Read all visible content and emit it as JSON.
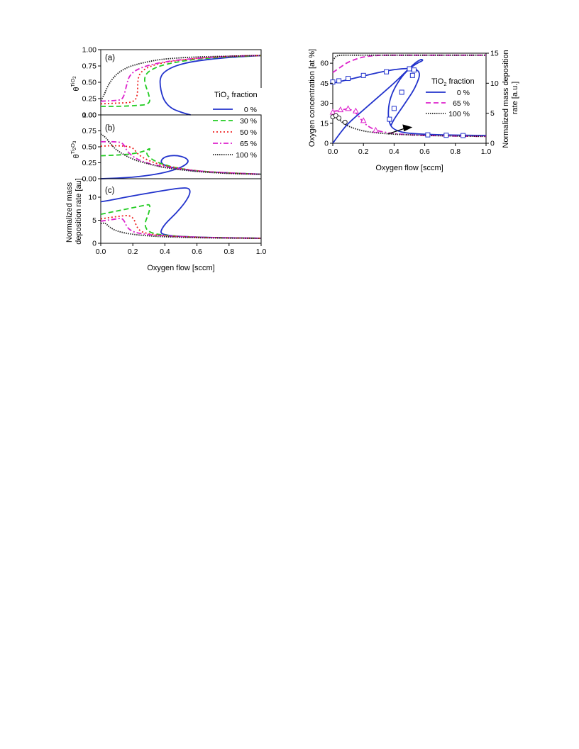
{
  "chart_data": [
    {
      "panel": "a",
      "type": "line",
      "title": "(a)",
      "ylabel": "θ^TiO2",
      "ylabel_main": "θ",
      "ylabel_sup": "TiO",
      "ylabel_sup_sub": "2",
      "xlim": [
        0,
        1.0
      ],
      "ylim": [
        0,
        1.0
      ],
      "yticks": [
        "0.00",
        "0.25",
        "0.50",
        "0.75",
        "1.00"
      ],
      "grid": false,
      "legend_position": "right",
      "legend_title": "TiO2 fraction",
      "legend_title_main": "TiO",
      "legend_title_sub": "2",
      "legend_title_rest": " fraction",
      "series": [
        {
          "name": "0 %",
          "color": "#2233cc",
          "style": "solid",
          "x": [
            0.56,
            0.5,
            0.44,
            0.4,
            0.38,
            0.37,
            0.37,
            0.39,
            0.45,
            0.55,
            0.7,
            0.85,
            1.0
          ],
          "y": [
            0.0,
            0.04,
            0.1,
            0.2,
            0.32,
            0.45,
            0.56,
            0.65,
            0.74,
            0.81,
            0.86,
            0.89,
            0.91
          ]
        },
        {
          "name": "30 %",
          "color": "#22cc22",
          "style": "dashed",
          "x": [
            0.0,
            0.1,
            0.2,
            0.31,
            0.3,
            0.28,
            0.27,
            0.3,
            0.4,
            0.6,
            0.8,
            1.0
          ],
          "y": [
            0.13,
            0.13,
            0.14,
            0.16,
            0.32,
            0.44,
            0.57,
            0.68,
            0.78,
            0.86,
            0.89,
            0.91
          ]
        },
        {
          "name": "50 %",
          "color": "#ee2222",
          "style": "dotted",
          "x": [
            0.0,
            0.1,
            0.2,
            0.23,
            0.23,
            0.25,
            0.3,
            0.4,
            0.6,
            0.8,
            1.0
          ],
          "y": [
            0.17,
            0.18,
            0.19,
            0.28,
            0.55,
            0.66,
            0.74,
            0.81,
            0.87,
            0.9,
            0.91
          ]
        },
        {
          "name": "65 %",
          "color": "#dd22cc",
          "style": "dashdot",
          "x": [
            0.0,
            0.1,
            0.14,
            0.16,
            0.18,
            0.25,
            0.4,
            0.6,
            0.8,
            1.0
          ],
          "y": [
            0.21,
            0.22,
            0.24,
            0.45,
            0.62,
            0.73,
            0.82,
            0.87,
            0.9,
            0.91
          ]
        },
        {
          "name": "100 %",
          "color": "#222222",
          "style": "densedot",
          "x": [
            0.0,
            0.02,
            0.05,
            0.1,
            0.15,
            0.2,
            0.3,
            0.4,
            0.6,
            0.8,
            1.0
          ],
          "y": [
            0.22,
            0.3,
            0.48,
            0.63,
            0.71,
            0.76,
            0.82,
            0.86,
            0.89,
            0.9,
            0.91
          ]
        }
      ]
    },
    {
      "panel": "b",
      "type": "line",
      "title": "(b)",
      "ylabel": "θ^Ti2O3",
      "ylabel_main": "θ",
      "ylabel_sup": "Ti",
      "ylabel_sup_sub": "2",
      "ylabel_sup2": "O",
      "ylabel_sup2_sub": "3",
      "xlim": [
        0,
        1.0
      ],
      "ylim": [
        0,
        1.0
      ],
      "yticks": [
        "0.00",
        "0.25",
        "0.50",
        "0.75",
        "1.00"
      ],
      "grid": false,
      "series": [
        {
          "name": "0 %",
          "color": "#2233cc",
          "style": "solid",
          "x": [
            0.0,
            0.2,
            0.35,
            0.45,
            0.52,
            0.55,
            0.53,
            0.47,
            0.4,
            0.37,
            0.4,
            0.5,
            0.6,
            0.8,
            1.0
          ],
          "y": [
            0.0,
            0.02,
            0.07,
            0.13,
            0.2,
            0.27,
            0.33,
            0.37,
            0.35,
            0.27,
            0.2,
            0.15,
            0.12,
            0.09,
            0.07
          ]
        },
        {
          "name": "30 %",
          "color": "#22cc22",
          "style": "dashed",
          "x": [
            0.0,
            0.1,
            0.2,
            0.27,
            0.31,
            0.3,
            0.28,
            0.35,
            0.5,
            0.7,
            1.0
          ],
          "y": [
            0.36,
            0.37,
            0.39,
            0.43,
            0.48,
            0.44,
            0.38,
            0.25,
            0.15,
            0.1,
            0.07
          ]
        },
        {
          "name": "50 %",
          "color": "#ee2222",
          "style": "dotted",
          "x": [
            0.0,
            0.1,
            0.2,
            0.23,
            0.3,
            0.4,
            0.6,
            0.8,
            1.0
          ],
          "y": [
            0.51,
            0.52,
            0.5,
            0.38,
            0.28,
            0.2,
            0.12,
            0.09,
            0.07
          ]
        },
        {
          "name": "65 %",
          "color": "#dd22cc",
          "style": "dashdot",
          "x": [
            0.0,
            0.1,
            0.14,
            0.17,
            0.25,
            0.4,
            0.6,
            0.8,
            1.0
          ],
          "y": [
            0.58,
            0.58,
            0.56,
            0.4,
            0.27,
            0.18,
            0.12,
            0.09,
            0.07
          ]
        },
        {
          "name": "100 %",
          "color": "#222222",
          "style": "densedot",
          "x": [
            0.0,
            0.03,
            0.06,
            0.1,
            0.2,
            0.3,
            0.4,
            0.6,
            0.8,
            1.0
          ],
          "y": [
            0.7,
            0.65,
            0.55,
            0.44,
            0.3,
            0.23,
            0.17,
            0.11,
            0.08,
            0.07
          ]
        }
      ]
    },
    {
      "panel": "c",
      "type": "line",
      "title": "(c)",
      "ylabel_line1": "Normalized mass",
      "ylabel_line2": "deposition rate [au]",
      "xlabel": "Oxygen flow [sccm]",
      "xlim": [
        0,
        1.0
      ],
      "ylim": [
        0,
        14
      ],
      "xticks": [
        "0.0",
        "0.2",
        "0.4",
        "0.6",
        "0.8",
        "1.0"
      ],
      "yticks": [
        "0",
        "5",
        "10"
      ],
      "grid": false,
      "series": [
        {
          "name": "0 %",
          "color": "#2233cc",
          "style": "solid",
          "x": [
            0.0,
            0.1,
            0.2,
            0.3,
            0.4,
            0.5,
            0.55,
            0.56,
            0.53,
            0.47,
            0.4,
            0.37,
            0.39,
            0.45,
            0.55,
            0.7,
            0.85,
            1.0
          ],
          "y": [
            9.0,
            9.6,
            10.3,
            10.9,
            11.5,
            12.0,
            12.0,
            11.0,
            9.0,
            6.5,
            4.2,
            2.4,
            1.9,
            1.6,
            1.4,
            1.25,
            1.15,
            1.1
          ]
        },
        {
          "name": "30 %",
          "color": "#22cc22",
          "style": "dashed",
          "x": [
            0.0,
            0.1,
            0.2,
            0.28,
            0.31,
            0.3,
            0.27,
            0.3,
            0.4,
            0.6,
            0.8,
            1.0
          ],
          "y": [
            6.3,
            7.0,
            7.7,
            8.3,
            8.4,
            6.5,
            4.0,
            2.3,
            1.7,
            1.3,
            1.15,
            1.1
          ]
        },
        {
          "name": "50 %",
          "color": "#ee2222",
          "style": "dotted",
          "x": [
            0.0,
            0.1,
            0.2,
            0.23,
            0.3,
            0.4,
            0.6,
            0.8,
            1.0
          ],
          "y": [
            5.3,
            5.8,
            6.2,
            2.8,
            2.0,
            1.6,
            1.3,
            1.15,
            1.1
          ]
        },
        {
          "name": "65 %",
          "color": "#dd22cc",
          "style": "dashdot",
          "x": [
            0.0,
            0.1,
            0.14,
            0.17,
            0.25,
            0.4,
            0.6,
            0.8,
            1.0
          ],
          "y": [
            4.8,
            5.3,
            5.5,
            2.9,
            2.0,
            1.6,
            1.3,
            1.15,
            1.1
          ]
        },
        {
          "name": "100 %",
          "color": "#222222",
          "style": "densedot",
          "x": [
            0.0,
            0.03,
            0.05,
            0.1,
            0.2,
            0.3,
            0.4,
            0.6,
            0.8,
            1.0
          ],
          "y": [
            4.3,
            4.4,
            3.6,
            2.6,
            1.9,
            1.6,
            1.4,
            1.2,
            1.12,
            1.1
          ]
        }
      ]
    },
    {
      "panel": "right",
      "type": "line",
      "xlabel": "Oxygen flow [sccm]",
      "ylabel": "Oxygen concentration [at %]",
      "y2label_line1": "Normalized mass deposition",
      "y2label_line2": "rate [a.u.]",
      "xlim": [
        0,
        1.0
      ],
      "ylim": [
        0,
        67.5
      ],
      "y2lim": [
        0,
        15
      ],
      "xticks": [
        "0.0",
        "0.2",
        "0.4",
        "0.6",
        "0.8",
        "1.0"
      ],
      "yticks": [
        "0",
        "15",
        "30",
        "45",
        "60"
      ],
      "y2ticks": [
        "0",
        "5",
        "10",
        "15"
      ],
      "grid": false,
      "legend_position": "right",
      "legend_title": "TiO2 fraction",
      "legend_title_main": "TiO",
      "legend_title_sub": "2",
      "legend_title_rest": " fraction",
      "series": [
        {
          "name": "0 %",
          "color": "#2233cc",
          "style": "solid",
          "axis": "left",
          "x": [
            0.0,
            0.05,
            0.1,
            0.2,
            0.3,
            0.4,
            0.48,
            0.53,
            0.56,
            0.58,
            0.59,
            0.55,
            0.5,
            0.45,
            0.4,
            0.37,
            0.36,
            0.37,
            0.39,
            0.45,
            0.55,
            0.7,
            0.85,
            1.0
          ],
          "y": [
            0.0,
            8.0,
            15.0,
            25.0,
            35.0,
            45.0,
            54.0,
            59.5,
            62.0,
            63.0,
            62.0,
            60.0,
            56.0,
            50.0,
            41.0,
            32.0,
            22.0,
            15.0,
            11.0,
            8.0,
            7.0,
            6.3,
            6.0,
            5.8
          ]
        },
        {
          "name": "0 %",
          "color": "#2233cc",
          "style": "solid",
          "axis": "right",
          "in_legend": false,
          "x": [
            0.0,
            0.1,
            0.2,
            0.3,
            0.4,
            0.5,
            0.55,
            0.57,
            0.55,
            0.52,
            0.48,
            0.44,
            0.4,
            0.38
          ],
          "y": [
            10.0,
            10.6,
            11.2,
            11.8,
            12.3,
            12.5,
            12.3,
            11.5,
            10.0,
            8.5,
            7.0,
            5.5,
            4.0,
            3.0
          ]
        },
        {
          "name": "65 %",
          "color": "#dd22cc",
          "style": "dashed",
          "axis": "left",
          "x": [
            0.0,
            0.05,
            0.1,
            0.2,
            0.3,
            0.4,
            0.5,
            0.6,
            0.8,
            1.0
          ],
          "y": [
            53.0,
            57.0,
            61.0,
            65.0,
            66.0,
            66.0,
            66.0,
            66.0,
            66.0,
            66.0
          ]
        },
        {
          "name": "65 %",
          "color": "#dd22cc",
          "style": "dashdot",
          "axis": "right",
          "in_legend": false,
          "x": [
            0.0,
            0.05,
            0.1,
            0.15,
            0.2,
            0.25,
            0.3,
            0.4,
            0.5,
            0.6,
            0.8,
            1.0
          ],
          "y": [
            5.3,
            5.5,
            5.8,
            5.2,
            3.4,
            2.5,
            2.0,
            1.6,
            1.4,
            1.3,
            1.2,
            1.15
          ]
        },
        {
          "name": "100 %",
          "color": "#222222",
          "style": "densedot",
          "axis": "left",
          "x": [
            0.0,
            0.02,
            0.05,
            0.1,
            0.2,
            0.4,
            0.6,
            0.8,
            1.0
          ],
          "y": [
            62.0,
            65.5,
            66.0,
            66.0,
            66.0,
            66.0,
            66.0,
            66.0,
            66.0
          ]
        },
        {
          "name": "100 %",
          "color": "#222222",
          "style": "densedot",
          "axis": "right",
          "in_legend": false,
          "x": [
            0.0,
            0.03,
            0.05,
            0.1,
            0.2,
            0.3,
            0.4,
            0.6,
            0.8,
            1.0
          ],
          "y": [
            4.3,
            4.3,
            3.7,
            2.8,
            2.0,
            1.7,
            1.5,
            1.3,
            1.2,
            1.15
          ]
        }
      ],
      "markers": [
        {
          "shape": "square",
          "color": "#2233cc",
          "axis": "right",
          "x": [
            0.0,
            0.04,
            0.1,
            0.2,
            0.35,
            0.5,
            0.53,
            0.52,
            0.45,
            0.4,
            0.37
          ],
          "y": [
            10.2,
            10.4,
            10.8,
            11.3,
            11.9,
            12.4,
            12.2,
            11.3,
            8.5,
            5.8,
            4.0
          ]
        },
        {
          "shape": "square",
          "color": "#2233cc",
          "axis": "left",
          "x": [
            0.62,
            0.74,
            0.85
          ],
          "y": [
            6.3,
            6.0,
            5.8
          ]
        },
        {
          "shape": "triangle",
          "color": "#dd22cc",
          "axis": "right",
          "x": [
            0.0,
            0.05,
            0.1,
            0.15,
            0.2,
            0.28
          ],
          "y": [
            5.2,
            5.6,
            5.8,
            5.4,
            3.8,
            2.2
          ]
        },
        {
          "shape": "circle",
          "color": "#222222",
          "axis": "right",
          "x": [
            0.0,
            0.02,
            0.04,
            0.08
          ],
          "y": [
            4.4,
            4.6,
            4.2,
            3.5
          ]
        }
      ],
      "annotations": [
        {
          "type": "arrow",
          "direction": "right",
          "color": "#000000",
          "x_from": 0.36,
          "x_to": 0.52,
          "y_from": 7.0,
          "y_to": 12.0,
          "axis": "left"
        }
      ]
    }
  ]
}
